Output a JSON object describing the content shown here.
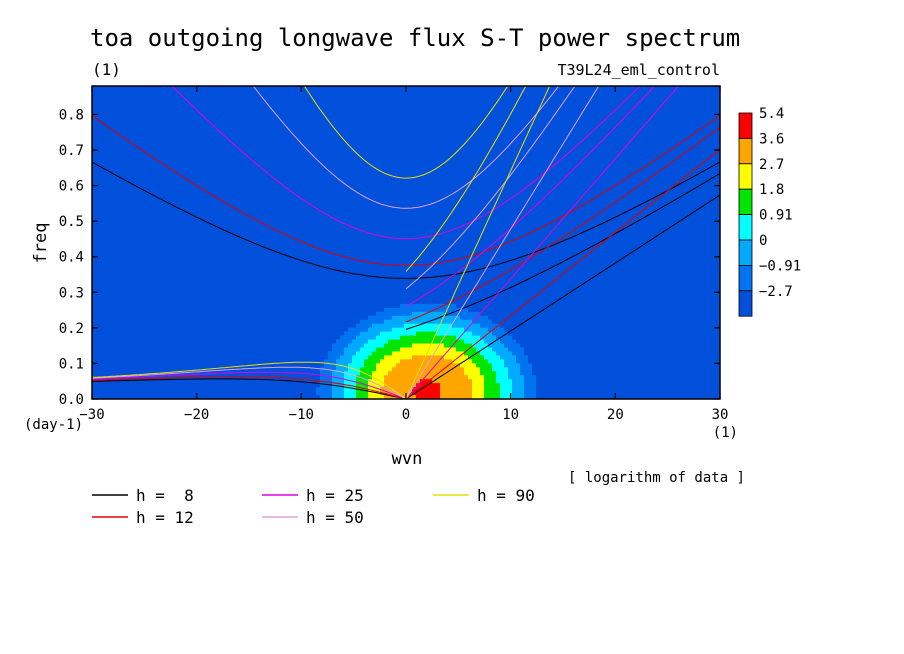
{
  "title": "toa outgoing longwave flux S-T power spectrum",
  "subtitle_left": "(1)",
  "subtitle_right": "T39L24_eml_control",
  "note": "[ logarithm of data ]",
  "chart_data": {
    "type": "heatmap",
    "xlabel": "wvn",
    "ylabel": "freq",
    "x_unit_label": "(1)",
    "y_unit_label": "(day-1)",
    "xlim": [
      -30,
      30
    ],
    "ylim": [
      0.0,
      0.88
    ],
    "x_ticks": [
      "-30",
      "-20",
      "-10",
      "0",
      "10",
      "20",
      "30"
    ],
    "y_ticks": [
      "0.0",
      "0.1",
      "0.2",
      "0.3",
      "0.4",
      "0.5",
      "0.6",
      "0.7",
      "0.8"
    ],
    "color_levels": [
      {
        "label": "5.4",
        "color": "#ff0000"
      },
      {
        "label": "3.6",
        "color": "#ffa500"
      },
      {
        "label": "2.7",
        "color": "#ffff00"
      },
      {
        "label": "1.8",
        "color": "#00e600"
      },
      {
        "label": "0.91",
        "color": "#00ffff"
      },
      {
        "label": "0",
        "color": "#00aaff"
      },
      {
        "label": "-0.91",
        "color": "#0073f0"
      },
      {
        "label": "-2.7",
        "color": "#0050dc"
      }
    ],
    "field_shape": {
      "peak_x": 2,
      "peak_y": 0.02,
      "max": 6.0
    },
    "dispersion_curves": [
      {
        "label": "h =  8",
        "h": 8,
        "color": "#000000"
      },
      {
        "label": "h = 12",
        "h": 12,
        "color": "#e00000"
      },
      {
        "label": "h = 25",
        "h": 25,
        "color": "#e000e0"
      },
      {
        "label": "h = 50",
        "h": 50,
        "color": "#e0a0e0"
      },
      {
        "label": "h = 90",
        "h": 90,
        "color": "#e8e000"
      }
    ]
  }
}
